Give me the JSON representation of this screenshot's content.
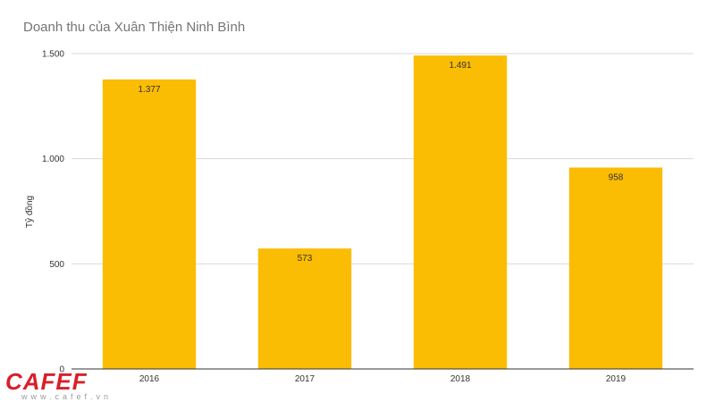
{
  "chart_data": {
    "type": "bar",
    "title": "Doanh thu của Xuân Thiện Ninh Bình",
    "xlabel": "",
    "ylabel": "Tỷ đồng",
    "categories": [
      "2016",
      "2017",
      "2018",
      "2019"
    ],
    "series": [
      {
        "values": [
          1377,
          573,
          1491,
          958
        ],
        "value_labels": [
          "1.377",
          "573",
          "1.491",
          "958"
        ],
        "color": "#FBBC04"
      }
    ],
    "ylim": [
      0,
      1500
    ],
    "yticks": [
      0,
      500,
      1000,
      1500
    ],
    "ytick_labels": [
      "0",
      "500",
      "1.000",
      "1.500"
    ],
    "grid": true,
    "legend": "none",
    "colors": {
      "bar": "#FBBC04",
      "grid": "#d9d9d9",
      "axis": "#333333",
      "text": "#333333"
    }
  },
  "logo": {
    "text": "CAFEF",
    "subtext": "www.cafef.vn",
    "color": "#D8202A"
  }
}
